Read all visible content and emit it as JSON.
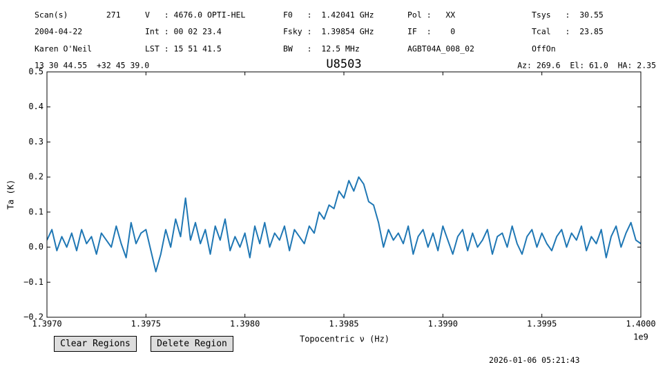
{
  "header": {
    "rows": [
      [
        "Scan(s)        271",
        "V   : 4676.0 OPTI-HEL",
        "F0   :  1.42041 GHz",
        "Pol :   XX",
        "Tsys   :  30.55"
      ],
      [
        "2004-04-22",
        "Int : 00 02 23.4",
        "Fsky :  1.39854 GHz",
        "IF  :    0",
        "Tcal   :  23.85"
      ],
      [
        "Karen O'Neil",
        "LST : 15 51 41.5",
        "BW   :  12.5 MHz",
        "AGBT04A_008_02",
        "OffOn"
      ]
    ],
    "coords": "13 30 44.55  +32 45 39.0",
    "azel": "Az: 269.6  El: 61.0  HA: 2.35"
  },
  "chart_data": {
    "type": "line",
    "title": "U8503",
    "xlabel": "Topocentric ν (Hz)",
    "ylabel": "Ta (K)",
    "x_offset": "1e9",
    "x": [
      1.397,
      1.397025,
      1.39705,
      1.397075,
      1.3971,
      1.397125,
      1.39715,
      1.397175,
      1.3972,
      1.397225,
      1.39725,
      1.397275,
      1.3973,
      1.397325,
      1.39735,
      1.397375,
      1.3974,
      1.397425,
      1.39745,
      1.397475,
      1.3975,
      1.397525,
      1.39755,
      1.397575,
      1.3976,
      1.397625,
      1.39765,
      1.397675,
      1.3977,
      1.397725,
      1.39775,
      1.397775,
      1.3978,
      1.397825,
      1.39785,
      1.397875,
      1.3979,
      1.397925,
      1.39795,
      1.397975,
      1.398,
      1.398025,
      1.39805,
      1.398075,
      1.3981,
      1.398125,
      1.39815,
      1.398175,
      1.3982,
      1.398225,
      1.39825,
      1.398275,
      1.3983,
      1.398325,
      1.39835,
      1.398375,
      1.3984,
      1.398425,
      1.39845,
      1.398475,
      1.3985,
      1.398525,
      1.39855,
      1.398575,
      1.3986,
      1.398625,
      1.39865,
      1.398675,
      1.3987,
      1.398725,
      1.39875,
      1.398775,
      1.3988,
      1.398825,
      1.39885,
      1.398875,
      1.3989,
      1.398925,
      1.39895,
      1.398975,
      1.399,
      1.399025,
      1.39905,
      1.399075,
      1.3991,
      1.399125,
      1.39915,
      1.399175,
      1.3992,
      1.399225,
      1.39925,
      1.399275,
      1.3993,
      1.399325,
      1.39935,
      1.399375,
      1.3994,
      1.399425,
      1.39945,
      1.399475,
      1.3995,
      1.399525,
      1.39955,
      1.399575,
      1.3996,
      1.399625,
      1.39965,
      1.399675,
      1.3997,
      1.399725,
      1.39975,
      1.399775,
      1.3998,
      1.399825,
      1.39985,
      1.399875,
      1.3999,
      1.399925,
      1.39995,
      1.399975,
      1.4
    ],
    "series": [
      {
        "name": "Ta",
        "color": "#1f77b4",
        "values": [
          0.02,
          0.05,
          -0.01,
          0.03,
          0.0,
          0.04,
          -0.01,
          0.05,
          0.01,
          0.03,
          -0.02,
          0.04,
          0.02,
          0.0,
          0.06,
          0.01,
          -0.03,
          0.07,
          0.01,
          0.04,
          0.05,
          -0.01,
          -0.07,
          -0.02,
          0.05,
          0.0,
          0.08,
          0.03,
          0.14,
          0.02,
          0.07,
          0.01,
          0.05,
          -0.02,
          0.06,
          0.02,
          0.08,
          -0.01,
          0.03,
          0.0,
          0.04,
          -0.03,
          0.06,
          0.01,
          0.07,
          0.0,
          0.04,
          0.02,
          0.06,
          -0.01,
          0.05,
          0.03,
          0.01,
          0.06,
          0.04,
          0.1,
          0.08,
          0.12,
          0.11,
          0.16,
          0.14,
          0.19,
          0.16,
          0.2,
          0.18,
          0.13,
          0.12,
          0.07,
          0.0,
          0.05,
          0.02,
          0.04,
          0.01,
          0.06,
          -0.02,
          0.03,
          0.05,
          0.0,
          0.04,
          -0.01,
          0.06,
          0.02,
          -0.02,
          0.03,
          0.05,
          -0.01,
          0.04,
          0.0,
          0.02,
          0.05,
          -0.02,
          0.03,
          0.04,
          0.0,
          0.06,
          0.01,
          -0.02,
          0.03,
          0.05,
          0.0,
          0.04,
          0.01,
          -0.01,
          0.03,
          0.05,
          0.0,
          0.04,
          0.02,
          0.06,
          -0.01,
          0.03,
          0.01,
          0.05,
          -0.03,
          0.03,
          0.06,
          0.0,
          0.04,
          0.07,
          0.02,
          0.01
        ]
      }
    ],
    "xlim": [
      1.397,
      1.4
    ],
    "xticks": [
      {
        "value": 1.397,
        "label": "1.3970"
      },
      {
        "value": 1.3975,
        "label": "1.3975"
      },
      {
        "value": 1.398,
        "label": "1.3980"
      },
      {
        "value": 1.3985,
        "label": "1.3985"
      },
      {
        "value": 1.399,
        "label": "1.3990"
      },
      {
        "value": 1.3995,
        "label": "1.3995"
      },
      {
        "value": 1.4,
        "label": "1.4000"
      }
    ],
    "ylim": [
      -0.2,
      0.5
    ],
    "yticks": [
      {
        "value": -0.2,
        "label": "−0.2"
      },
      {
        "value": -0.1,
        "label": "−0.1"
      },
      {
        "value": 0,
        "label": "0.0"
      },
      0.1,
      0.2,
      0.3,
      0.4,
      0.5
    ],
    "grid": false
  },
  "buttons": [
    "Clear Regions",
    "Delete Region"
  ],
  "timestamp": "2026-01-06 05:21:43"
}
